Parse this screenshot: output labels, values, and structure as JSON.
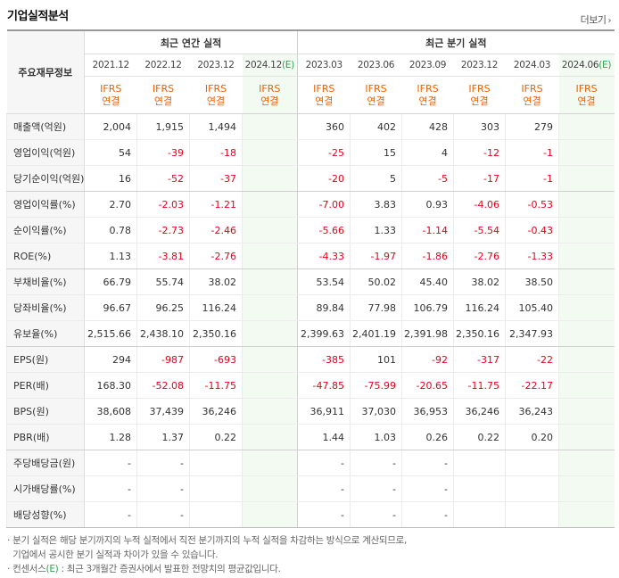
{
  "title": "기업실적분석",
  "more_label": "더보기",
  "more_icon": "chevron-right-icon",
  "row_header": "주요재무정보",
  "annual_group": "최근 연간 실적",
  "quarter_group": "최근 분기 실적",
  "periods": [
    "2021.12",
    "2022.12",
    "2023.12",
    "2024.12",
    "2023.03",
    "2023.06",
    "2023.09",
    "2023.12",
    "2024.03",
    "2024.06"
  ],
  "estimate_marker": "(E)",
  "ifrs_top": "IFRS",
  "ifrs_bottom": "연결",
  "rows": [
    {
      "label": "매출액(억원)",
      "values": [
        "2,004",
        "1,915",
        "1,494",
        "",
        "360",
        "402",
        "428",
        "303",
        "279",
        ""
      ]
    },
    {
      "label": "영업이익(억원)",
      "values": [
        "54",
        "-39",
        "-18",
        "",
        "-25",
        "15",
        "4",
        "-12",
        "-1",
        ""
      ]
    },
    {
      "label": "당기순이익(억원)",
      "values": [
        "16",
        "-52",
        "-37",
        "",
        "-20",
        "5",
        "-5",
        "-17",
        "-1",
        ""
      ]
    },
    {
      "label": "영업이익률(%)",
      "values": [
        "2.70",
        "-2.03",
        "-1.21",
        "",
        "-7.00",
        "3.83",
        "0.93",
        "-4.06",
        "-0.53",
        ""
      ]
    },
    {
      "label": "순이익률(%)",
      "values": [
        "0.78",
        "-2.73",
        "-2.46",
        "",
        "-5.66",
        "1.33",
        "-1.14",
        "-5.54",
        "-0.43",
        ""
      ]
    },
    {
      "label": "ROE(%)",
      "values": [
        "1.13",
        "-3.81",
        "-2.76",
        "",
        "-4.33",
        "-1.97",
        "-1.86",
        "-2.76",
        "-1.33",
        ""
      ]
    },
    {
      "label": "부채비율(%)",
      "values": [
        "66.79",
        "55.74",
        "38.02",
        "",
        "53.54",
        "50.02",
        "45.40",
        "38.02",
        "38.50",
        ""
      ]
    },
    {
      "label": "당좌비율(%)",
      "values": [
        "96.67",
        "96.25",
        "116.24",
        "",
        "89.84",
        "77.98",
        "106.79",
        "116.24",
        "105.40",
        ""
      ]
    },
    {
      "label": "유보율(%)",
      "values": [
        "2,515.66",
        "2,438.10",
        "2,350.16",
        "",
        "2,399.63",
        "2,401.19",
        "2,391.98",
        "2,350.16",
        "2,347.93",
        ""
      ]
    },
    {
      "label": "EPS(원)",
      "values": [
        "294",
        "-987",
        "-693",
        "",
        "-385",
        "101",
        "-92",
        "-317",
        "-22",
        ""
      ]
    },
    {
      "label": "PER(배)",
      "values": [
        "168.30",
        "-52.08",
        "-11.75",
        "",
        "-47.85",
        "-75.99",
        "-20.65",
        "-11.75",
        "-22.17",
        ""
      ]
    },
    {
      "label": "BPS(원)",
      "values": [
        "38,608",
        "37,439",
        "36,246",
        "",
        "36,911",
        "37,030",
        "36,953",
        "36,246",
        "36,243",
        ""
      ]
    },
    {
      "label": "PBR(배)",
      "values": [
        "1.28",
        "1.37",
        "0.22",
        "",
        "1.44",
        "1.03",
        "0.26",
        "0.22",
        "0.20",
        ""
      ]
    },
    {
      "label": "주당배당금(원)",
      "values": [
        "-",
        "-",
        "",
        "",
        "-",
        "-",
        "-",
        "",
        "",
        ""
      ]
    },
    {
      "label": "시가배당률(%)",
      "values": [
        "-",
        "-",
        "",
        "",
        "-",
        "-",
        "-",
        "",
        "",
        ""
      ]
    },
    {
      "label": "배당성향(%)",
      "values": [
        "-",
        "-",
        "",
        "",
        "-",
        "-",
        "-",
        "",
        "",
        ""
      ]
    }
  ],
  "note1": "분기 실적은 해당 분기까지의 누적 실적에서 직전 분기까지의 누적 실적을 차감하는 방식으로 계산되므로,",
  "note1b": "기업에서 공시한 분기 실적과 차이가 있을 수 있습니다.",
  "note2_prefix": "컨센서스",
  "note2_suffix": ": 최근 3개월간 증권사에서 발표한 전망치의 평균값입니다.",
  "colors": {
    "accent": "#f06000",
    "negative": "#e8001b",
    "estimate": "#2aa64a",
    "forecast_bg": "#f3faf2"
  }
}
